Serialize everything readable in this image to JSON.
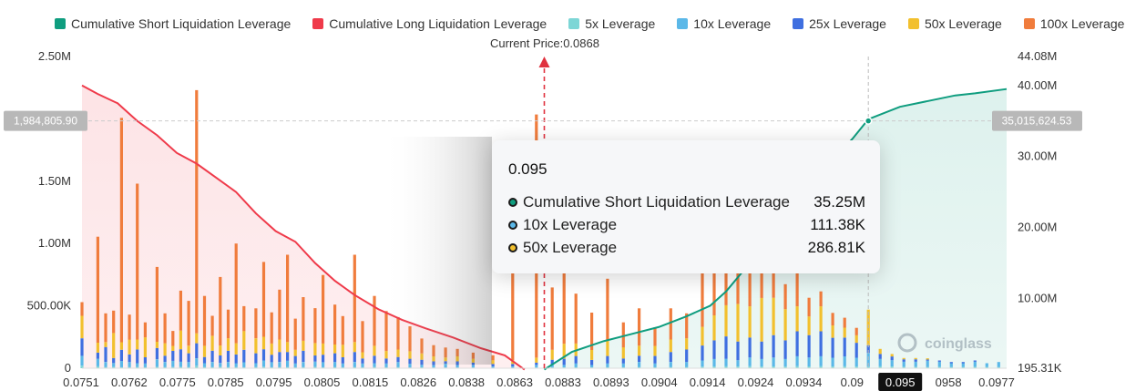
{
  "legend": [
    {
      "label": "Cumulative Short Liquidation Leverage",
      "color": "#0f9d7f"
    },
    {
      "label": "Cumulative Long Liquidation Leverage",
      "color": "#ef3a4a"
    },
    {
      "label": "5x Leverage",
      "color": "#7dd6d6"
    },
    {
      "label": "10x Leverage",
      "color": "#5bb8e8"
    },
    {
      "label": "25x Leverage",
      "color": "#3f6fe0"
    },
    {
      "label": "50x Leverage",
      "color": "#f2c02e"
    },
    {
      "label": "100x Leverage",
      "color": "#f07c3c"
    }
  ],
  "current_price_label": "Current Price:0.0868",
  "tooltip": {
    "title": "0.095",
    "rows": [
      {
        "name": "Cumulative Short Liquidation Leverage",
        "value": "35.25M",
        "dot": "#0f9d7f"
      },
      {
        "name": "10x Leverage",
        "value": "111.38K",
        "dot": "#5bb8e8"
      },
      {
        "name": "50x Leverage",
        "value": "286.81K",
        "dot": "#f2c02e"
      }
    ]
  },
  "chart_data": {
    "type": "bar",
    "title": "",
    "left_axis": {
      "ylim": [
        0,
        2500000
      ],
      "ticks": [
        "0",
        "500.00K",
        "1.00M",
        "1.50M",
        "2.50M"
      ],
      "tick_values": [
        0,
        500000,
        1000000,
        1500000,
        2500000
      ]
    },
    "right_axis": {
      "ylim": [
        195310,
        44080000
      ],
      "ticks": [
        "195.31K",
        "10.00M",
        "20.00M",
        "30.00M",
        "40.00M",
        "44.08M"
      ],
      "tick_values": [
        195310,
        10000000,
        20000000,
        30000000,
        40000000,
        44080000
      ]
    },
    "x_ticks": [
      "0.0751",
      "0.0762",
      "0.0775",
      "0.0785",
      "0.0795",
      "0.0805",
      "0.0815",
      "0.0826",
      "0.0838",
      "0.0863",
      "0.0883",
      "0.0893",
      "0.0904",
      "0.0914",
      "0.0924",
      "0.0934",
      "0.09",
      "0.095",
      "0958",
      "0.0977"
    ],
    "x_highlight": "0.095",
    "x_range": [
      0.0751,
      0.0985
    ],
    "current_price": 0.0868,
    "crosshair": {
      "x": 0.095,
      "left_value_label": "1,984,805.90",
      "right_value_label": "35,015,624.53"
    },
    "cumulative_long": {
      "x": [
        0.0751,
        0.0755,
        0.076,
        0.0765,
        0.077,
        0.0775,
        0.078,
        0.0785,
        0.079,
        0.0795,
        0.08,
        0.0805,
        0.081,
        0.0815,
        0.082,
        0.0826,
        0.0832,
        0.0838,
        0.0845,
        0.0852,
        0.0858,
        0.0863
      ],
      "y": [
        40000000,
        38800000,
        37500000,
        35000000,
        33000000,
        30500000,
        29000000,
        27000000,
        25000000,
        22000000,
        19500000,
        18000000,
        15000000,
        12500000,
        10500000,
        8500000,
        7000000,
        5800000,
        4500000,
        3000000,
        2000000,
        0
      ]
    },
    "cumulative_short": {
      "x": [
        0.0868,
        0.0875,
        0.0883,
        0.089,
        0.0897,
        0.0904,
        0.091,
        0.0914,
        0.092,
        0.0924,
        0.093,
        0.0934,
        0.094,
        0.0946,
        0.095,
        0.0958,
        0.0965,
        0.0972,
        0.0977,
        0.0985
      ],
      "y": [
        0,
        2500000,
        4000000,
        5000000,
        6000000,
        7500000,
        9000000,
        11000000,
        15000000,
        17500000,
        20000000,
        24000000,
        29000000,
        32500000,
        35250000,
        37000000,
        37800000,
        38600000,
        38900000,
        39500000
      ]
    },
    "series": [
      {
        "name": "5x Leverage",
        "color": "#7dd6d6"
      },
      {
        "name": "10x Leverage",
        "color": "#5bb8e8"
      },
      {
        "name": "25x Leverage",
        "color": "#3f6fe0"
      },
      {
        "name": "50x Leverage",
        "color": "#f2c02e"
      },
      {
        "name": "100x Leverage",
        "color": "#f07c3c"
      }
    ],
    "bars": [
      {
        "x": 0.0751,
        "v": [
          20000,
          80000,
          140000,
          180000,
          110000
        ]
      },
      {
        "x": 0.0755,
        "v": [
          15000,
          60000,
          50000,
          80000,
          850000
        ]
      },
      {
        "x": 0.0757,
        "v": [
          10000,
          40000,
          120000,
          40000,
          230000
        ]
      },
      {
        "x": 0.0759,
        "v": [
          12000,
          30000,
          40000,
          200000,
          180000
        ]
      },
      {
        "x": 0.0761,
        "v": [
          8000,
          50000,
          90000,
          60000,
          1800000
        ]
      },
      {
        "x": 0.0763,
        "v": [
          10000,
          40000,
          60000,
          120000,
          200000
        ]
      },
      {
        "x": 0.0765,
        "v": [
          10000,
          30000,
          110000,
          80000,
          1250000
        ]
      },
      {
        "x": 0.0767,
        "v": [
          8000,
          30000,
          50000,
          160000,
          120000
        ]
      },
      {
        "x": 0.077,
        "v": [
          12000,
          60000,
          90000,
          50000,
          600000
        ]
      },
      {
        "x": 0.0772,
        "v": [
          10000,
          40000,
          50000,
          100000,
          240000
        ]
      },
      {
        "x": 0.0774,
        "v": [
          9000,
          50000,
          80000,
          40000,
          120000
        ]
      },
      {
        "x": 0.0776,
        "v": [
          12000,
          40000,
          100000,
          150000,
          320000
        ]
      },
      {
        "x": 0.0778,
        "v": [
          10000,
          40000,
          70000,
          60000,
          360000
        ]
      },
      {
        "x": 0.078,
        "v": [
          20000,
          60000,
          120000,
          80000,
          1950000
        ]
      },
      {
        "x": 0.0782,
        "v": [
          10000,
          30000,
          50000,
          90000,
          400000
        ]
      },
      {
        "x": 0.0784,
        "v": [
          10000,
          40000,
          90000,
          120000,
          160000
        ]
      },
      {
        "x": 0.0786,
        "v": [
          12000,
          30000,
          60000,
          80000,
          550000
        ]
      },
      {
        "x": 0.0788,
        "v": [
          10000,
          40000,
          90000,
          100000,
          230000
        ]
      },
      {
        "x": 0.079,
        "v": [
          10000,
          30000,
          70000,
          90000,
          800000
        ]
      },
      {
        "x": 0.0792,
        "v": [
          8000,
          40000,
          100000,
          150000,
          200000
        ]
      },
      {
        "x": 0.0795,
        "v": [
          10000,
          30000,
          80000,
          120000,
          240000
        ]
      },
      {
        "x": 0.0797,
        "v": [
          12000,
          50000,
          90000,
          100000,
          600000
        ]
      },
      {
        "x": 0.0799,
        "v": [
          8000,
          40000,
          60000,
          90000,
          250000
        ]
      },
      {
        "x": 0.0801,
        "v": [
          10000,
          40000,
          80000,
          100000,
          400000
        ]
      },
      {
        "x": 0.0803,
        "v": [
          10000,
          50000,
          70000,
          80000,
          700000
        ]
      },
      {
        "x": 0.0805,
        "v": [
          8000,
          30000,
          60000,
          50000,
          250000
        ]
      },
      {
        "x": 0.0807,
        "v": [
          10000,
          40000,
          90000,
          80000,
          350000
        ]
      },
      {
        "x": 0.081,
        "v": [
          12000,
          40000,
          50000,
          100000,
          280000
        ]
      },
      {
        "x": 0.0812,
        "v": [
          8000,
          40000,
          60000,
          90000,
          550000
        ]
      },
      {
        "x": 0.0815,
        "v": [
          10000,
          40000,
          70000,
          70000,
          320000
        ]
      },
      {
        "x": 0.0817,
        "v": [
          8000,
          30000,
          50000,
          100000,
          230000
        ]
      },
      {
        "x": 0.082,
        "v": [
          10000,
          40000,
          80000,
          80000,
          700000
        ]
      },
      {
        "x": 0.0822,
        "v": [
          8000,
          30000,
          40000,
          50000,
          250000
        ]
      },
      {
        "x": 0.0825,
        "v": [
          10000,
          30000,
          60000,
          80000,
          400000
        ]
      },
      {
        "x": 0.0828,
        "v": [
          8000,
          30000,
          40000,
          60000,
          320000
        ]
      },
      {
        "x": 0.0831,
        "v": [
          10000,
          40000,
          40000,
          60000,
          260000
        ]
      },
      {
        "x": 0.0834,
        "v": [
          6000,
          30000,
          40000,
          60000,
          200000
        ]
      },
      {
        "x": 0.0837,
        "v": [
          8000,
          20000,
          40000,
          50000,
          120000
        ]
      },
      {
        "x": 0.084,
        "v": [
          5000,
          20000,
          30000,
          40000,
          90000
        ]
      },
      {
        "x": 0.0843,
        "v": [
          6000,
          30000,
          20000,
          30000,
          80000
        ]
      },
      {
        "x": 0.0846,
        "v": [
          5000,
          20000,
          30000,
          40000,
          60000
        ]
      },
      {
        "x": 0.085,
        "v": [
          5000,
          20000,
          20000,
          30000,
          50000
        ]
      },
      {
        "x": 0.0855,
        "v": [
          4000,
          10000,
          20000,
          30000,
          40000
        ]
      },
      {
        "x": 0.086,
        "v": [
          4000,
          10000,
          20000,
          30000,
          720000
        ]
      },
      {
        "x": 0.0866,
        "v": [
          5000,
          20000,
          20000,
          40000,
          1950000
        ]
      },
      {
        "x": 0.087,
        "v": [
          8000,
          20000,
          40000,
          80000,
          500000
        ]
      },
      {
        "x": 0.0873,
        "v": [
          6000,
          20000,
          50000,
          120000,
          600000
        ]
      },
      {
        "x": 0.0876,
        "v": [
          8000,
          30000,
          60000,
          100000,
          400000
        ]
      },
      {
        "x": 0.088,
        "v": [
          6000,
          20000,
          40000,
          80000,
          300000
        ]
      },
      {
        "x": 0.0884,
        "v": [
          8000,
          30000,
          60000,
          120000,
          500000
        ]
      },
      {
        "x": 0.0888,
        "v": [
          8000,
          30000,
          40000,
          90000,
          200000
        ]
      },
      {
        "x": 0.0892,
        "v": [
          10000,
          40000,
          50000,
          80000,
          300000
        ]
      },
      {
        "x": 0.0896,
        "v": [
          8000,
          30000,
          60000,
          80000,
          150000
        ]
      },
      {
        "x": 0.09,
        "v": [
          10000,
          40000,
          80000,
          100000,
          250000
        ]
      },
      {
        "x": 0.0904,
        "v": [
          10000,
          40000,
          100000,
          90000,
          200000
        ]
      },
      {
        "x": 0.0908,
        "v": [
          12000,
          50000,
          120000,
          150000,
          500000
        ]
      },
      {
        "x": 0.0911,
        "v": [
          14000,
          60000,
          150000,
          200000,
          400000
        ]
      },
      {
        "x": 0.0914,
        "v": [
          15000,
          60000,
          180000,
          250000,
          600000
        ]
      },
      {
        "x": 0.0917,
        "v": [
          14000,
          50000,
          150000,
          300000,
          300000
        ]
      },
      {
        "x": 0.092,
        "v": [
          16000,
          70000,
          160000,
          250000,
          400000
        ]
      },
      {
        "x": 0.0923,
        "v": [
          14000,
          60000,
          140000,
          350000,
          200000
        ]
      },
      {
        "x": 0.0926,
        "v": [
          15000,
          70000,
          180000,
          300000,
          250000
        ]
      },
      {
        "x": 0.0929,
        "v": [
          14000,
          60000,
          150000,
          250000,
          200000
        ]
      },
      {
        "x": 0.0932,
        "v": [
          16000,
          80000,
          200000,
          200000,
          300000
        ]
      },
      {
        "x": 0.0935,
        "v": [
          15000,
          70000,
          180000,
          150000,
          150000
        ]
      },
      {
        "x": 0.0938,
        "v": [
          16000,
          80000,
          200000,
          200000,
          120000
        ]
      },
      {
        "x": 0.0941,
        "v": [
          14000,
          70000,
          160000,
          100000,
          100000
        ]
      },
      {
        "x": 0.0944,
        "v": [
          15000,
          80000,
          150000,
          80000,
          80000
        ]
      },
      {
        "x": 0.0947,
        "v": [
          14000,
          70000,
          120000,
          60000,
          60000
        ]
      },
      {
        "x": 0.095,
        "v": [
          12000,
          111380,
          60000,
          286810,
          0
        ]
      },
      {
        "x": 0.0953,
        "v": [
          15000,
          60000,
          40000,
          40000,
          0
        ]
      },
      {
        "x": 0.0956,
        "v": [
          14000,
          50000,
          30000,
          20000,
          0
        ]
      },
      {
        "x": 0.0959,
        "v": [
          12000,
          40000,
          20000,
          10000,
          0
        ]
      },
      {
        "x": 0.0962,
        "v": [
          12000,
          40000,
          20000,
          10000,
          0
        ]
      },
      {
        "x": 0.0965,
        "v": [
          10000,
          50000,
          10000,
          10000,
          0
        ]
      },
      {
        "x": 0.0968,
        "v": [
          12000,
          40000,
          10000,
          0,
          0
        ]
      },
      {
        "x": 0.0971,
        "v": [
          10000,
          30000,
          10000,
          0,
          0
        ]
      },
      {
        "x": 0.0974,
        "v": [
          10000,
          30000,
          10000,
          0,
          0
        ]
      },
      {
        "x": 0.0977,
        "v": [
          12000,
          40000,
          10000,
          0,
          0
        ]
      },
      {
        "x": 0.098,
        "v": [
          10000,
          30000,
          0,
          0,
          0
        ]
      },
      {
        "x": 0.0983,
        "v": [
          10000,
          40000,
          0,
          0,
          0
        ]
      }
    ]
  },
  "watermark": "coinglass"
}
